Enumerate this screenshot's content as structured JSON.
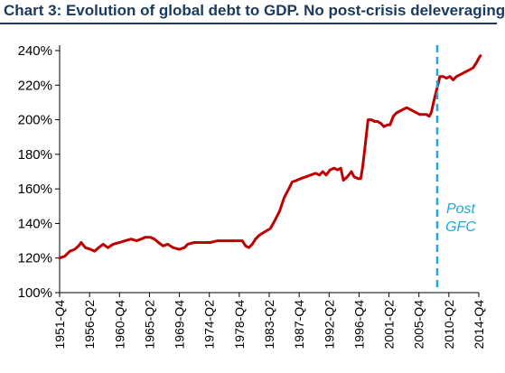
{
  "chart_data": {
    "type": "line",
    "title": "Chart 3: Evolution of global debt to GDP. No post-crisis deleveraging",
    "xlabel": "",
    "ylabel": "",
    "ylim": [
      100,
      240
    ],
    "y_ticks": [
      "100%",
      "120%",
      "140%",
      "160%",
      "180%",
      "200%",
      "220%",
      "240%"
    ],
    "x_ticks": [
      "1951-Q4",
      "1956-Q2",
      "1960-Q4",
      "1965-Q2",
      "1969-Q4",
      "1974-Q2",
      "1978-Q4",
      "1983-Q2",
      "1987-Q4",
      "1992-Q2",
      "1996-Q4",
      "2001-Q2",
      "2005-Q4",
      "2010-Q2",
      "2014-Q4"
    ],
    "grid": false,
    "annotation": {
      "text_line1": "Post",
      "text_line2": "GFC",
      "x": 2008.5
    },
    "colors": {
      "series": "#c00000",
      "annotation": "#1ea7e1",
      "title": "#1a3a5c",
      "axis": "#000000"
    },
    "series": [
      {
        "values": [
          [
            1951.75,
            120
          ],
          [
            1952.5,
            121
          ],
          [
            1953.3,
            124
          ],
          [
            1954.0,
            125
          ],
          [
            1954.6,
            127
          ],
          [
            1955.0,
            129
          ],
          [
            1955.6,
            126
          ],
          [
            1956.4,
            125
          ],
          [
            1957.0,
            124
          ],
          [
            1957.6,
            126
          ],
          [
            1958.3,
            128
          ],
          [
            1959.0,
            126
          ],
          [
            1959.8,
            128
          ],
          [
            1960.75,
            129
          ],
          [
            1961.6,
            130
          ],
          [
            1962.5,
            131
          ],
          [
            1963.3,
            130
          ],
          [
            1964.0,
            131
          ],
          [
            1964.6,
            132
          ],
          [
            1965.4,
            132
          ],
          [
            1966.0,
            131
          ],
          [
            1966.6,
            129
          ],
          [
            1967.3,
            127
          ],
          [
            1968.0,
            128
          ],
          [
            1968.8,
            126
          ],
          [
            1969.75,
            125
          ],
          [
            1970.5,
            126
          ],
          [
            1971.0,
            128
          ],
          [
            1972.0,
            129
          ],
          [
            1973.0,
            129
          ],
          [
            1974.4,
            129
          ],
          [
            1975.5,
            130
          ],
          [
            1976.5,
            130
          ],
          [
            1977.5,
            130
          ],
          [
            1978.5,
            130
          ],
          [
            1979.2,
            130
          ],
          [
            1979.7,
            127
          ],
          [
            1980.2,
            126
          ],
          [
            1980.7,
            128
          ],
          [
            1981.2,
            131
          ],
          [
            1981.7,
            133
          ],
          [
            1982.5,
            135
          ],
          [
            1983.4,
            137
          ],
          [
            1984.0,
            141
          ],
          [
            1984.8,
            147
          ],
          [
            1985.5,
            155
          ],
          [
            1986.2,
            160
          ],
          [
            1986.7,
            164
          ],
          [
            1987.4,
            165
          ],
          [
            1988.0,
            166
          ],
          [
            1988.8,
            167
          ],
          [
            1989.5,
            168
          ],
          [
            1990.2,
            169
          ],
          [
            1990.8,
            168
          ],
          [
            1991.3,
            170
          ],
          [
            1991.8,
            168
          ],
          [
            1992.4,
            171
          ],
          [
            1993.0,
            172
          ],
          [
            1993.5,
            171
          ],
          [
            1994.0,
            172
          ],
          [
            1994.4,
            165
          ],
          [
            1995.0,
            167
          ],
          [
            1995.6,
            170
          ],
          [
            1996.0,
            167
          ],
          [
            1996.6,
            166
          ],
          [
            1997.0,
            166
          ],
          [
            1997.3,
            173
          ],
          [
            1997.7,
            186
          ],
          [
            1998.1,
            200
          ],
          [
            1998.6,
            200
          ],
          [
            1999.1,
            199
          ],
          [
            1999.5,
            199
          ],
          [
            2000.0,
            198
          ],
          [
            2000.5,
            196
          ],
          [
            2001.0,
            197
          ],
          [
            2001.4,
            197
          ],
          [
            2001.9,
            202
          ],
          [
            2002.4,
            204
          ],
          [
            2002.9,
            205
          ],
          [
            2003.4,
            206
          ],
          [
            2003.9,
            207
          ],
          [
            2004.4,
            206
          ],
          [
            2004.9,
            205
          ],
          [
            2005.4,
            204
          ],
          [
            2005.9,
            203
          ],
          [
            2006.4,
            203
          ],
          [
            2006.9,
            203
          ],
          [
            2007.3,
            202
          ],
          [
            2007.6,
            204
          ],
          [
            2008.0,
            211
          ],
          [
            2008.4,
            217
          ],
          [
            2008.9,
            225
          ],
          [
            2009.4,
            225
          ],
          [
            2009.9,
            224
          ],
          [
            2010.4,
            225
          ],
          [
            2010.9,
            223
          ],
          [
            2011.4,
            225
          ],
          [
            2011.9,
            226
          ],
          [
            2012.4,
            227
          ],
          [
            2012.9,
            228
          ],
          [
            2013.4,
            229
          ],
          [
            2013.9,
            230
          ],
          [
            2014.4,
            233
          ],
          [
            2014.8,
            236
          ],
          [
            2015.0,
            237
          ]
        ]
      }
    ]
  }
}
